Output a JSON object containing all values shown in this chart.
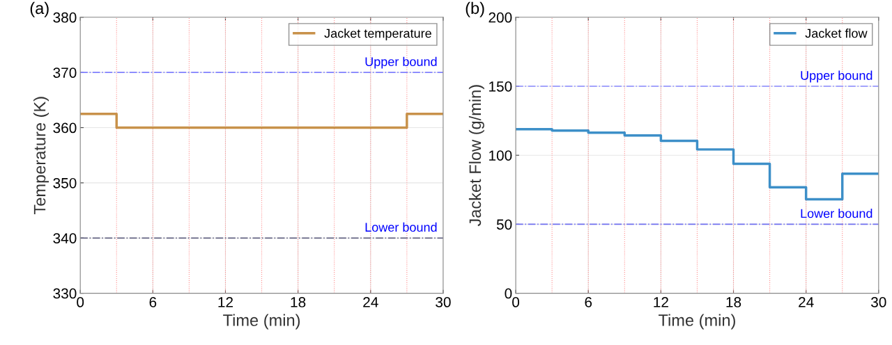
{
  "chart_data": [
    {
      "type": "step",
      "title": "(a)",
      "xlabel": "Time (min)",
      "ylabel": "Temperature (K)",
      "x": [
        0,
        3,
        6,
        9,
        12,
        15,
        18,
        21,
        24,
        27,
        30
      ],
      "series": [
        {
          "name": "Jacket temperature",
          "color": "#c8914a",
          "values": [
            362.5,
            360,
            360,
            360,
            360,
            360,
            360,
            360,
            360,
            362.5,
            362.5
          ]
        }
      ],
      "xlim": [
        0,
        30
      ],
      "xticks": [
        0,
        6,
        12,
        18,
        24,
        30
      ],
      "ylim": [
        330,
        380
      ],
      "yticks": [
        330,
        340,
        350,
        360,
        370,
        380
      ],
      "grid": true,
      "legend": "top right",
      "ref_lines": [
        {
          "axis": "y",
          "value": 370,
          "label": "Upper bound",
          "color": "#8080ff",
          "line_style": "dashdot"
        },
        {
          "axis": "y",
          "value": 340,
          "label": "Lower bound",
          "color": "#555577",
          "line_style": "dashdot"
        },
        {
          "axis": "x",
          "value": 3,
          "color": "#ff9090",
          "line_style": "dotted"
        },
        {
          "axis": "x",
          "value": 6,
          "color": "#ff9090",
          "line_style": "dotted"
        },
        {
          "axis": "x",
          "value": 9,
          "color": "#ff9090",
          "line_style": "dotted"
        },
        {
          "axis": "x",
          "value": 12,
          "color": "#ff9090",
          "line_style": "dotted"
        },
        {
          "axis": "x",
          "value": 15,
          "color": "#ff9090",
          "line_style": "dotted"
        },
        {
          "axis": "x",
          "value": 18,
          "color": "#ff9090",
          "line_style": "dotted"
        },
        {
          "axis": "x",
          "value": 21,
          "color": "#ff9090",
          "line_style": "dotted"
        },
        {
          "axis": "x",
          "value": 24,
          "color": "#ff9090",
          "line_style": "dotted"
        },
        {
          "axis": "x",
          "value": 27,
          "color": "#ff9090",
          "line_style": "dotted"
        }
      ]
    },
    {
      "type": "step",
      "title": "(b)",
      "xlabel": "Time (min)",
      "ylabel": "Jacket Flow (g/min)",
      "x": [
        0,
        3,
        6,
        9,
        12,
        15,
        18,
        21,
        24,
        27,
        30
      ],
      "series": [
        {
          "name": "Jacket flow",
          "color": "#3d8fc8",
          "values": [
            118.9,
            117.9,
            116.4,
            114.3,
            110.4,
            104.2,
            93.8,
            76.8,
            68.1,
            86.6,
            86.6
          ]
        }
      ],
      "xlim": [
        0,
        30
      ],
      "xticks": [
        0,
        6,
        12,
        18,
        24,
        30
      ],
      "ylim": [
        0,
        200
      ],
      "yticks": [
        0,
        50,
        100,
        150,
        200
      ],
      "grid": true,
      "legend": "top right",
      "ref_lines": [
        {
          "axis": "y",
          "value": 150,
          "label": "Upper bound",
          "color": "#8a8aff",
          "line_style": "dashdot"
        },
        {
          "axis": "y",
          "value": 50,
          "label": "Lower bound",
          "color": "#7070f0",
          "line_style": "dashdot"
        },
        {
          "axis": "x",
          "value": 3,
          "color": "#ff9090",
          "line_style": "dotted"
        },
        {
          "axis": "x",
          "value": 6,
          "color": "#ff9090",
          "line_style": "dotted"
        },
        {
          "axis": "x",
          "value": 9,
          "color": "#ff9090",
          "line_style": "dotted"
        },
        {
          "axis": "x",
          "value": 12,
          "color": "#ff9090",
          "line_style": "dotted"
        },
        {
          "axis": "x",
          "value": 15,
          "color": "#ff9090",
          "line_style": "dotted"
        },
        {
          "axis": "x",
          "value": 18,
          "color": "#ff9090",
          "line_style": "dotted"
        },
        {
          "axis": "x",
          "value": 21,
          "color": "#ff9090",
          "line_style": "dotted"
        },
        {
          "axis": "x",
          "value": 24,
          "color": "#ff9090",
          "line_style": "dotted"
        },
        {
          "axis": "x",
          "value": 27,
          "color": "#ff9090",
          "line_style": "dotted"
        }
      ]
    }
  ]
}
